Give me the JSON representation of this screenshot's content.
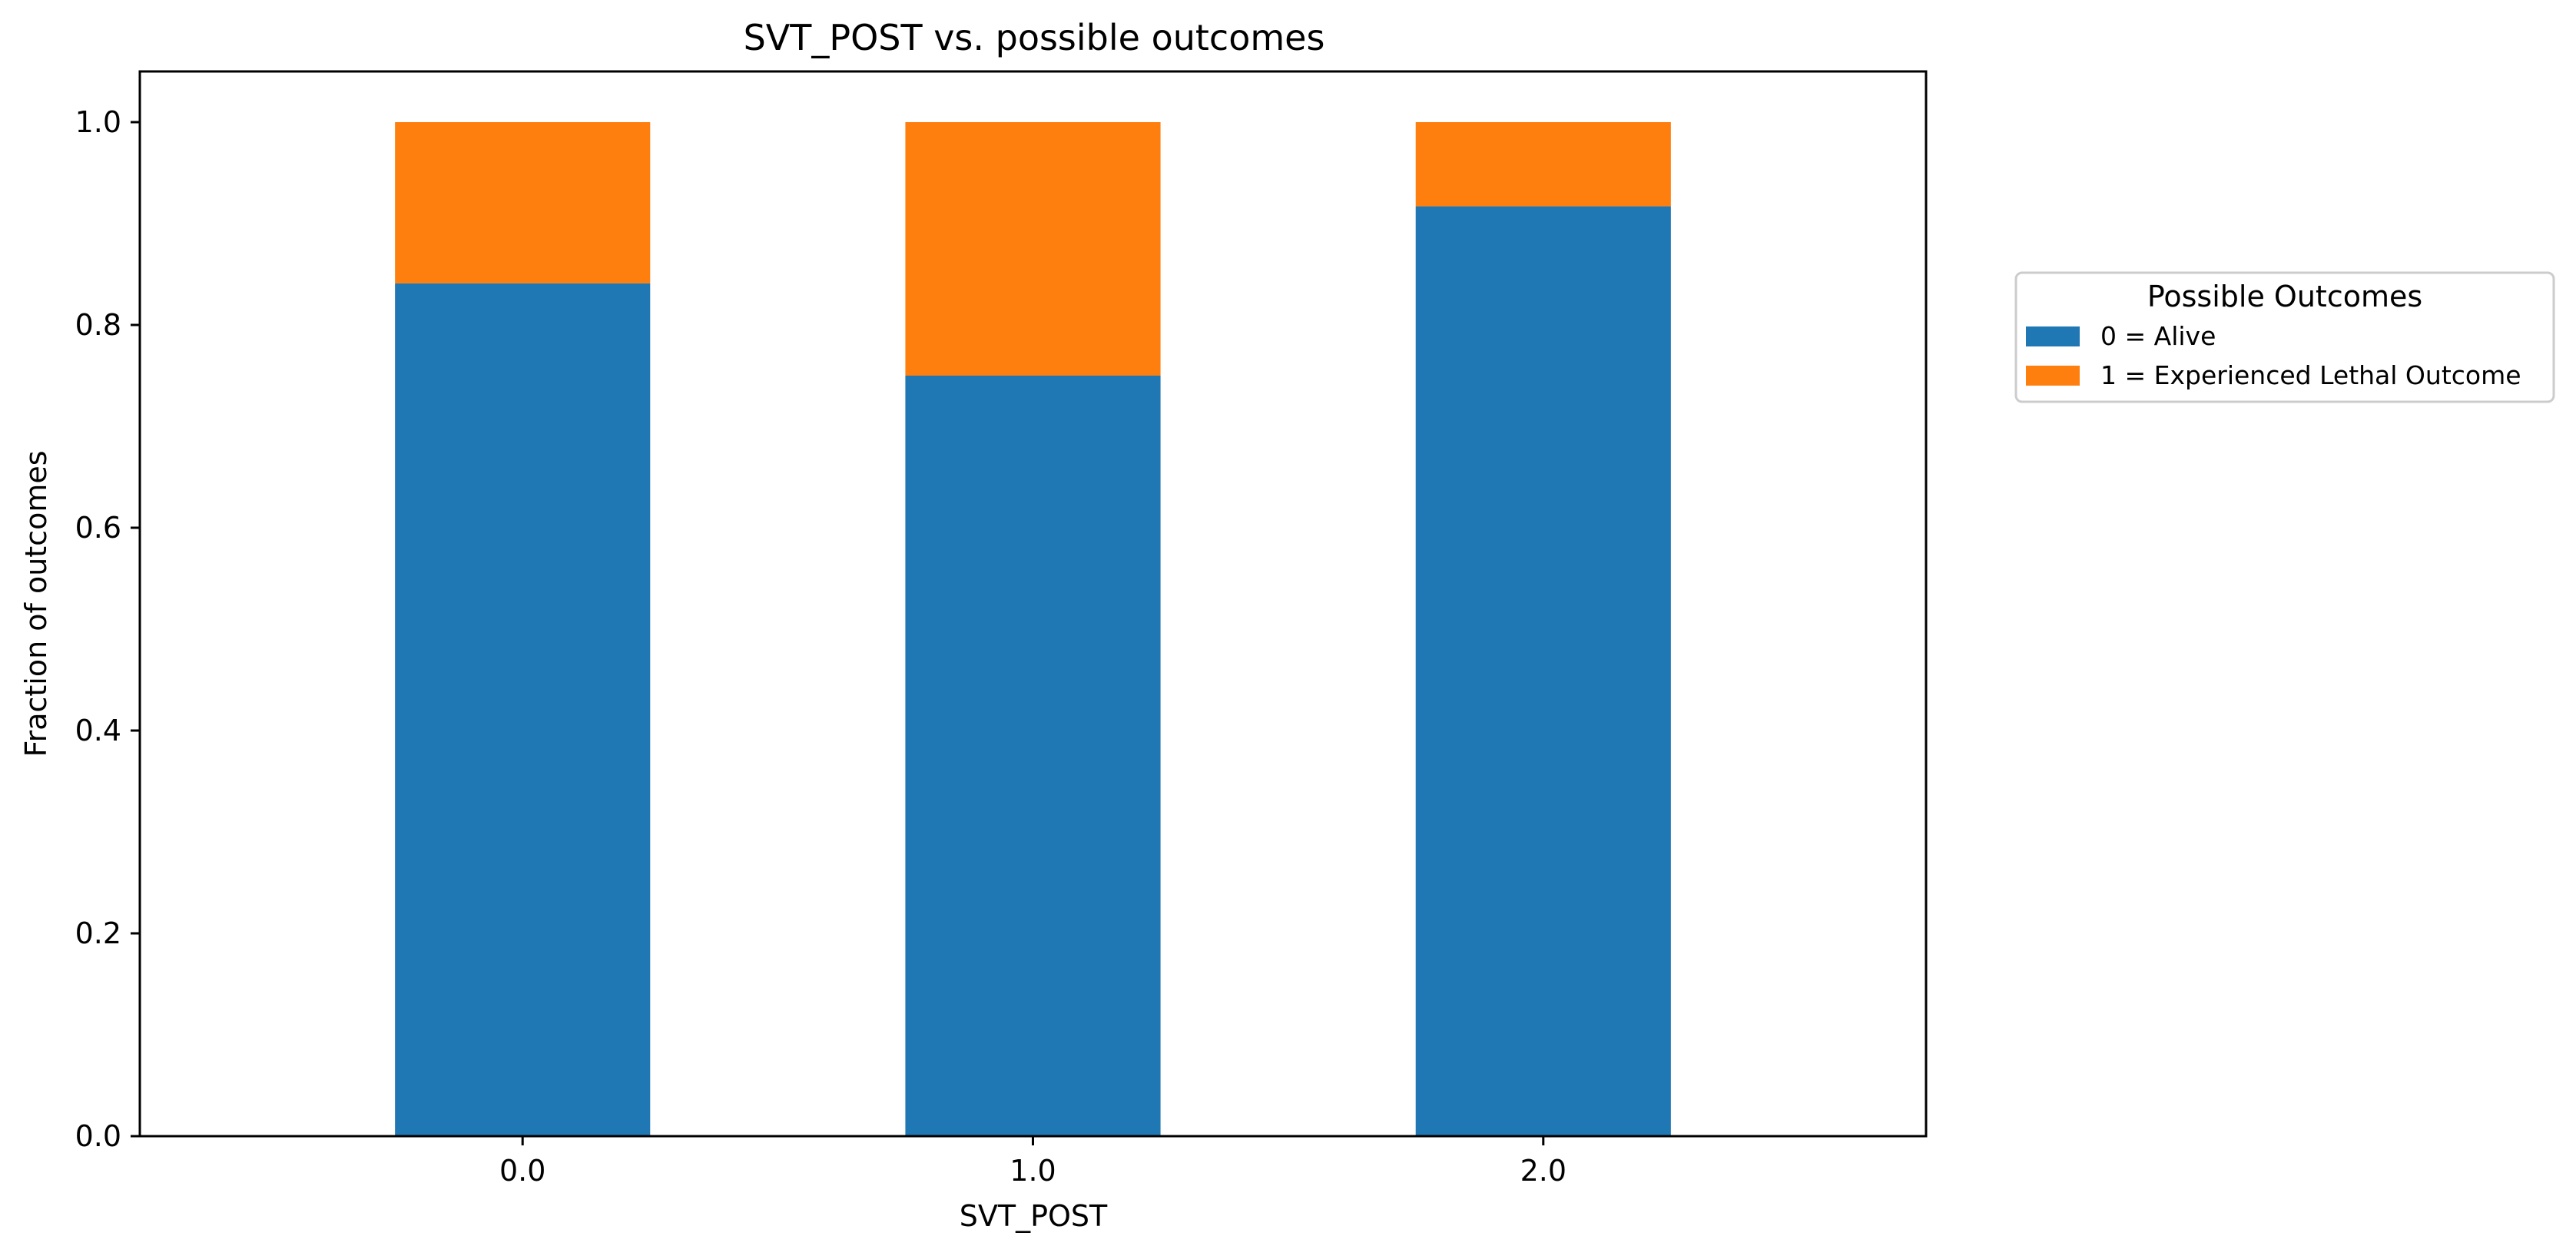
{
  "chart_data": {
    "type": "bar",
    "stacked": true,
    "title": "SVT_POST vs. possible outcomes",
    "xlabel": "SVT_POST",
    "ylabel": "Fraction of outcomes",
    "categories": [
      "0.0",
      "1.0",
      "2.0"
    ],
    "series": [
      {
        "name": "0 = Alive",
        "color": "#1f77b4",
        "values": [
          0.841,
          0.75,
          0.917
        ]
      },
      {
        "name": "1 = Experienced Lethal Outcome",
        "color": "#ff7f0e",
        "values": [
          0.159,
          0.25,
          0.083
        ]
      }
    ],
    "ylim": [
      0,
      1.05
    ],
    "yticks": [
      "0.0",
      "0.2",
      "0.4",
      "0.6",
      "0.8",
      "1.0"
    ],
    "grid": false,
    "legend": {
      "title": "Possible Outcomes",
      "placement": "outside-right"
    }
  }
}
